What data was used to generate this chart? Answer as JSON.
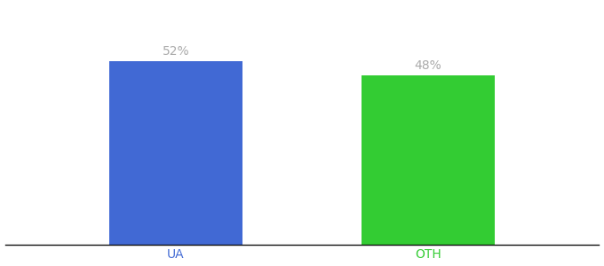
{
  "categories": [
    "UA",
    "OTH"
  ],
  "values": [
    52,
    48
  ],
  "bar_colors": [
    "#4169d4",
    "#33cc33"
  ],
  "label_texts": [
    "52%",
    "48%"
  ],
  "label_color": "#aaaaaa",
  "background_color": "#ffffff",
  "ylim": [
    0,
    68
  ],
  "bar_width": 0.18,
  "x_positions": [
    0.28,
    0.62
  ],
  "xlim": [
    0.05,
    0.85
  ],
  "figsize": [
    6.8,
    3.0
  ],
  "dpi": 100,
  "label_fontsize": 10,
  "tick_fontsize": 10
}
